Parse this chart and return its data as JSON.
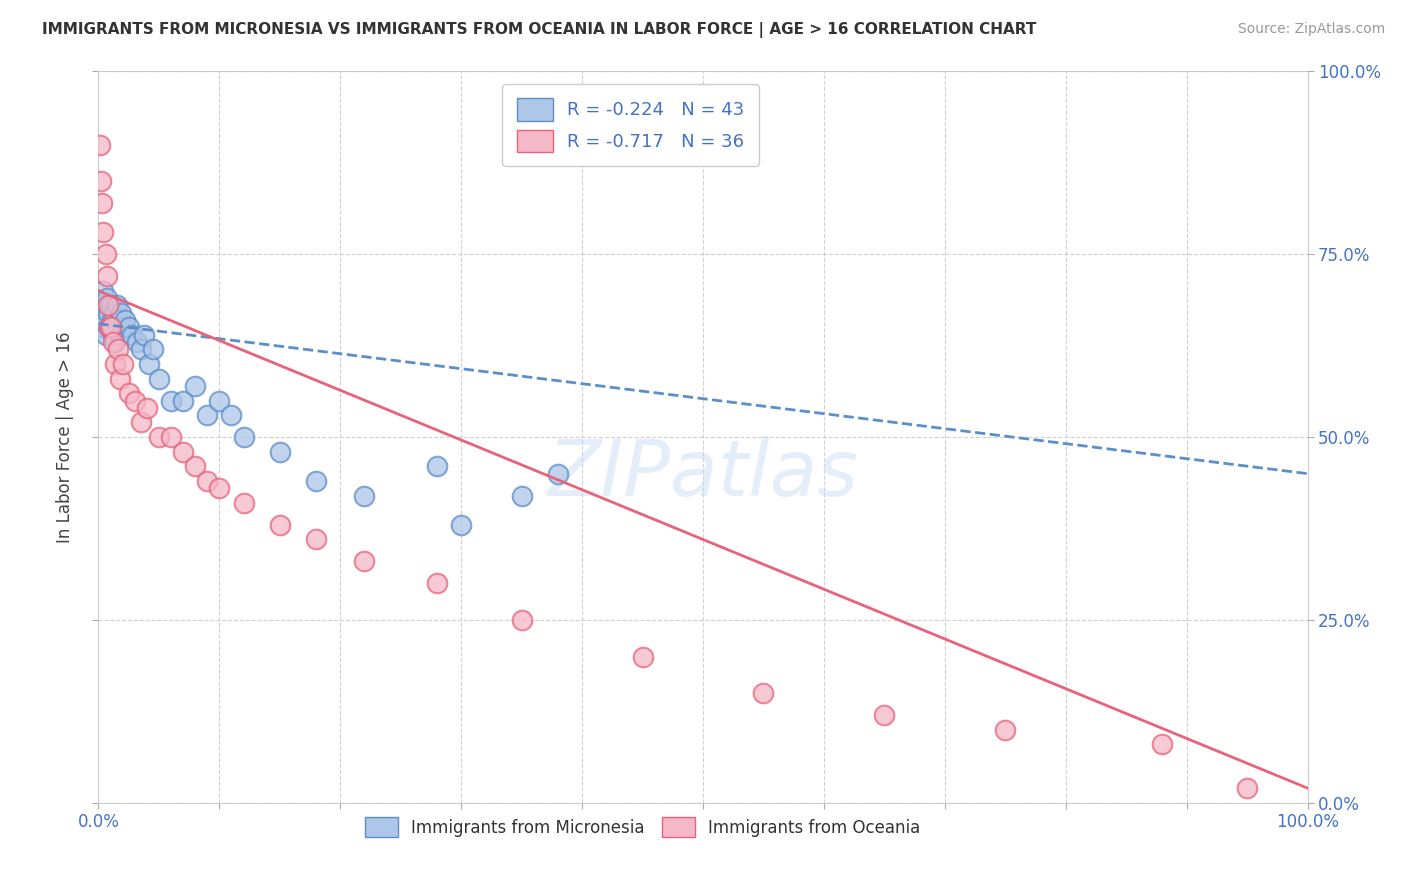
{
  "title": "IMMIGRANTS FROM MICRONESIA VS IMMIGRANTS FROM OCEANIA IN LABOR FORCE | AGE > 16 CORRELATION CHART",
  "source": "Source: ZipAtlas.com",
  "ylabel": "In Labor Force | Age > 16",
  "legend_labels": [
    "Immigrants from Micronesia",
    "Immigrants from Oceania"
  ],
  "R_micro": -0.224,
  "N_micro": 43,
  "R_ocean": -0.717,
  "N_ocean": 36,
  "color_micro": "#aec6e8",
  "color_ocean": "#f5b8c8",
  "line_color_micro": "#5b8fc9",
  "line_color_ocean": "#e8637a",
  "text_color_blue": "#4472c4",
  "watermark": "ZIPatlas",
  "xlim": [
    0.0,
    1.0
  ],
  "ylim": [
    0.0,
    1.0
  ],
  "micro_x": [
    0.001,
    0.002,
    0.003,
    0.004,
    0.005,
    0.006,
    0.007,
    0.008,
    0.009,
    0.01,
    0.011,
    0.012,
    0.013,
    0.014,
    0.015,
    0.016,
    0.017,
    0.018,
    0.019,
    0.02,
    0.022,
    0.025,
    0.028,
    0.032,
    0.035,
    0.038,
    0.042,
    0.045,
    0.05,
    0.06,
    0.07,
    0.08,
    0.09,
    0.1,
    0.11,
    0.12,
    0.15,
    0.18,
    0.22,
    0.28,
    0.3,
    0.35,
    0.38
  ],
  "micro_y": [
    0.67,
    0.68,
    0.65,
    0.7,
    0.66,
    0.64,
    0.69,
    0.67,
    0.65,
    0.68,
    0.66,
    0.64,
    0.67,
    0.63,
    0.68,
    0.65,
    0.66,
    0.64,
    0.67,
    0.65,
    0.66,
    0.65,
    0.64,
    0.63,
    0.62,
    0.64,
    0.6,
    0.62,
    0.58,
    0.55,
    0.55,
    0.57,
    0.53,
    0.55,
    0.53,
    0.5,
    0.48,
    0.44,
    0.42,
    0.46,
    0.38,
    0.42,
    0.45
  ],
  "ocean_x": [
    0.001,
    0.002,
    0.003,
    0.004,
    0.006,
    0.007,
    0.008,
    0.009,
    0.01,
    0.012,
    0.014,
    0.016,
    0.018,
    0.02,
    0.025,
    0.03,
    0.035,
    0.04,
    0.05,
    0.06,
    0.07,
    0.08,
    0.09,
    0.1,
    0.12,
    0.15,
    0.18,
    0.22,
    0.28,
    0.35,
    0.45,
    0.55,
    0.65,
    0.75,
    0.88,
    0.95
  ],
  "ocean_y": [
    0.9,
    0.85,
    0.82,
    0.78,
    0.75,
    0.72,
    0.68,
    0.65,
    0.65,
    0.63,
    0.6,
    0.62,
    0.58,
    0.6,
    0.56,
    0.55,
    0.52,
    0.54,
    0.5,
    0.5,
    0.48,
    0.46,
    0.44,
    0.43,
    0.41,
    0.38,
    0.36,
    0.33,
    0.3,
    0.25,
    0.2,
    0.15,
    0.12,
    0.1,
    0.08,
    0.02
  ],
  "micro_line_x": [
    0.0,
    1.0
  ],
  "micro_line_y": [
    0.655,
    0.45
  ],
  "ocean_line_x": [
    0.0,
    1.0
  ],
  "ocean_line_y": [
    0.7,
    0.02
  ]
}
